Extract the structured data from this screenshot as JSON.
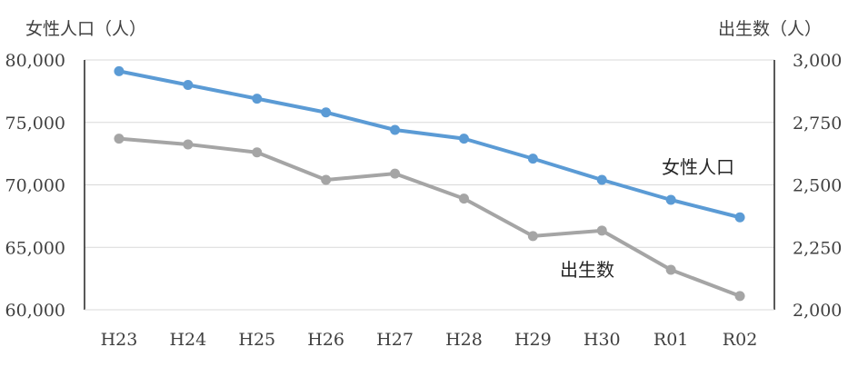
{
  "chart_data": {
    "type": "line",
    "categories": [
      "H23",
      "H24",
      "H25",
      "H26",
      "H27",
      "H28",
      "H29",
      "H30",
      "R01",
      "R02"
    ],
    "series": [
      {
        "name": "女性人口",
        "axis": "left",
        "color": "#5B9BD5",
        "values": [
          79100,
          78000,
          76900,
          75800,
          74400,
          73700,
          72100,
          70400,
          68800,
          67400
        ]
      },
      {
        "name": "出生数",
        "axis": "right",
        "color": "#A5A5A5",
        "values": [
          2685,
          2662,
          2630,
          2520,
          2545,
          2445,
          2295,
          2317,
          2160,
          2055
        ]
      }
    ],
    "y_left": {
      "label": "女性人口（人）",
      "lim": [
        60000,
        80000
      ],
      "ticks": [
        "60,000",
        "65,000",
        "70,000",
        "75,000",
        "80,000"
      ]
    },
    "y_right": {
      "label": "出生数（人）",
      "lim": [
        2000,
        3000
      ],
      "ticks": [
        "2,000",
        "2,250",
        "2,500",
        "2,750",
        "3,000"
      ]
    },
    "grid": true
  }
}
